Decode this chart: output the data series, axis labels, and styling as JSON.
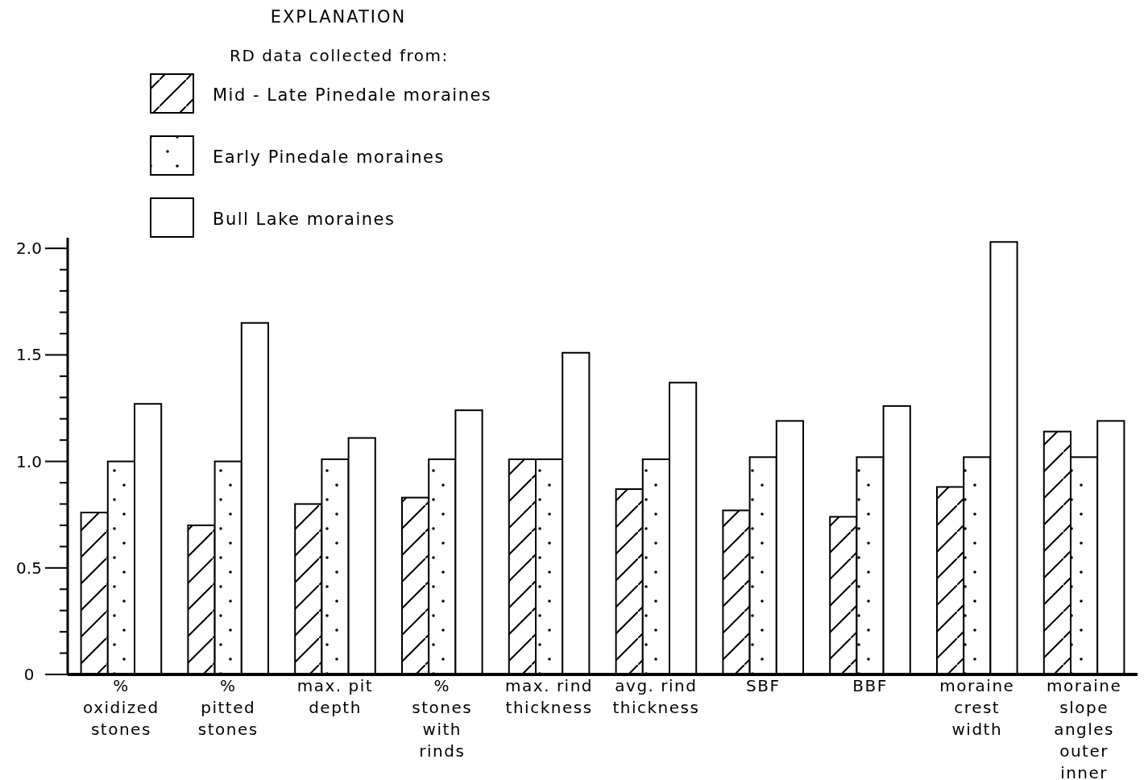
{
  "chart_data": {
    "type": "bar",
    "title": "EXPLANATION",
    "legend_title": "RD data collected from:",
    "categories": [
      "%\noxidized\nstones",
      "%\npitted\nstones",
      "max. pit\ndepth",
      "%\nstones\nwith\nrinds",
      "max. rind\nthickness",
      "avg. rind\nthickness",
      "SBF",
      "BBF",
      "moraine\ncrest\nwidth",
      "moraine\nslope\nangles\nouter\ninner"
    ],
    "series": [
      {
        "name": "Mid - Late Pinedale moraines",
        "color": "#000000",
        "values": [
          0.76,
          0.7,
          0.8,
          0.83,
          1.01,
          0.87,
          0.77,
          0.74,
          0.88,
          1.14
        ]
      },
      {
        "name": "Early Pinedale moraines",
        "color": "#000000",
        "values": [
          1.0,
          1.0,
          1.01,
          1.01,
          1.01,
          1.01,
          1.02,
          1.02,
          1.02,
          1.02
        ]
      },
      {
        "name": "Bull Lake moraines",
        "color": "#ffffff",
        "values": [
          1.27,
          1.65,
          1.11,
          1.24,
          1.51,
          1.37,
          1.19,
          1.26,
          2.03,
          1.19
        ]
      }
    ],
    "ylim": [
      0,
      2.05
    ],
    "yticks": [
      0,
      {
        "value": 0.1,
        "label": null
      },
      {
        "value": 0.2,
        "label": null
      },
      {
        "value": 0.3,
        "label": null
      },
      {
        "value": 0.4,
        "label": null
      },
      0.5,
      {
        "value": 0.6,
        "label": null
      },
      {
        "value": 0.7,
        "label": null
      },
      {
        "value": 0.8,
        "label": null
      },
      {
        "value": 0.9,
        "label": null
      },
      {
        "value": 1.0,
        "label": "1.0"
      },
      {
        "value": 1.1,
        "label": null
      },
      {
        "value": 1.2,
        "label": null
      },
      {
        "value": 1.3,
        "label": null
      },
      {
        "value": 1.4,
        "label": null
      },
      1.5,
      {
        "value": 1.6,
        "label": null
      },
      {
        "value": 1.7,
        "label": null
      },
      {
        "value": 1.8,
        "label": null
      },
      {
        "value": 1.9,
        "label": null
      },
      {
        "value": 2.0,
        "label": "2.0"
      }
    ],
    "legend": "top left"
  }
}
